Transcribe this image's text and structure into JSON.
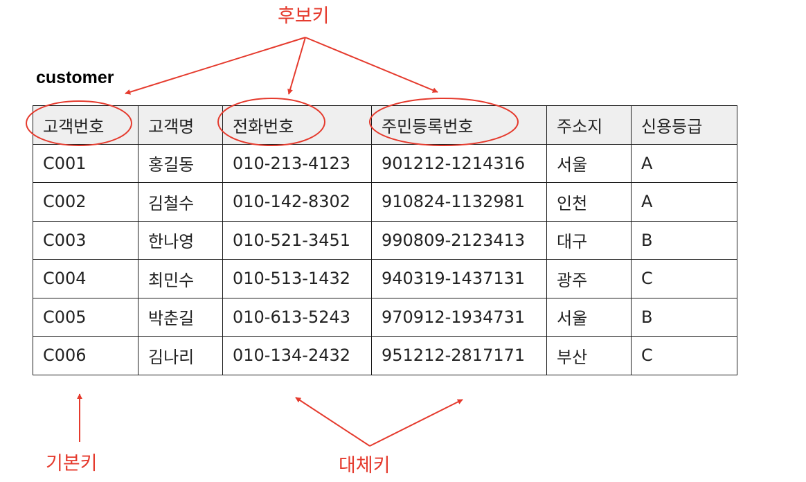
{
  "table_title": "customer",
  "columns": [
    "고객번호",
    "고객명",
    "전화번호",
    "주민등록번호",
    "주소지",
    "신용등급"
  ],
  "rows": [
    [
      "C001",
      "홍길동",
      "010-213-4123",
      "901212-1214316",
      "서울",
      "A"
    ],
    [
      "C002",
      "김철수",
      "010-142-8302",
      "910824-1132981",
      "인천",
      "A"
    ],
    [
      "C003",
      "한나영",
      "010-521-3451",
      "990809-2123413",
      "대구",
      "B"
    ],
    [
      "C004",
      "최민수",
      "010-513-1432",
      "940319-1437131",
      "광주",
      "C"
    ],
    [
      "C005",
      "박춘길",
      "010-613-5243",
      "970912-1934731",
      "서울",
      "B"
    ],
    [
      "C006",
      "김나리",
      "010-134-2432",
      "951212-2817171",
      "부산",
      "C"
    ]
  ],
  "annotations": {
    "candidate_key": "후보키",
    "primary_key": "기본키",
    "alternate_key": "대체키"
  },
  "colors": {
    "annotation": "#e53a2d",
    "header_bg": "#efefef",
    "border": "#1a1a1a"
  }
}
